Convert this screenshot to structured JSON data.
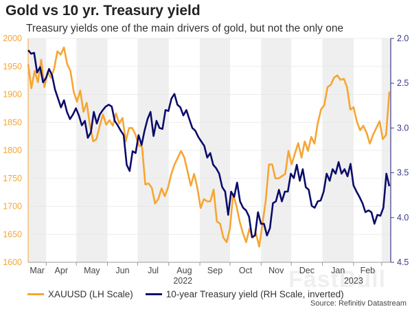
{
  "header": {
    "title": "Gold vs 10 yr. Treasury yield",
    "subtitle": "Treasury yields one of the main drivers of gold, but not the only one"
  },
  "watermark": "FastBull",
  "source": "Source: Refinitiv Datastream",
  "chart_data": {
    "type": "line",
    "title": "Gold vs 10 yr. Treasury yield",
    "x_range": [
      "2022-03-14",
      "2023-03-10"
    ],
    "x_ticks": [
      {
        "label": "Mar",
        "date": "2022-03-01"
      },
      {
        "label": "Apr",
        "date": "2022-04-01"
      },
      {
        "label": "May",
        "date": "2022-05-01"
      },
      {
        "label": "Jun",
        "date": "2022-06-01"
      },
      {
        "label": "Jul",
        "date": "2022-07-01"
      },
      {
        "label": "Aug",
        "date": "2022-08-01"
      },
      {
        "label": "Sep",
        "date": "2022-09-01"
      },
      {
        "label": "Oct",
        "date": "2022-10-01"
      },
      {
        "label": "Nov",
        "date": "2022-11-01"
      },
      {
        "label": "Dec",
        "date": "2022-12-01"
      },
      {
        "label": "Jan",
        "date": "2023-01-01"
      },
      {
        "label": "Feb",
        "date": "2023-02-01"
      },
      {
        "label": "",
        "date": "2023-03-01"
      }
    ],
    "year_labels": [
      {
        "label": "2022",
        "date": "2022-08-15"
      },
      {
        "label": "2023",
        "date": "2023-02-01"
      }
    ],
    "shaded_months": true,
    "grid": true,
    "y_left": {
      "range": [
        1600,
        2000
      ],
      "ticks": [
        1600,
        1650,
        1700,
        1750,
        1800,
        1850,
        1900,
        1950,
        2000
      ]
    },
    "y_right": {
      "range": [
        2.0,
        4.5
      ],
      "inverted": true,
      "ticks": [
        "2.0",
        "2.5",
        "3.0",
        "3.5",
        "4.0",
        "4.5"
      ]
    },
    "legend_position": "bottom",
    "series": [
      {
        "name": "XAUUSD (LH Scale)",
        "axis": "left",
        "color": "#F7A531",
        "values": [
          1954,
          1911,
          1942,
          1922,
          1962,
          1913,
          1940,
          1930,
          1946,
          1977,
          1971,
          1984,
          1954,
          1942,
          1905,
          1887,
          1907,
          1869,
          1885,
          1844,
          1816,
          1820,
          1844,
          1864,
          1846,
          1854,
          1844,
          1866,
          1848,
          1858,
          1816,
          1840,
          1840,
          1828,
          1809,
          1806,
          1739,
          1741,
          1733,
          1705,
          1713,
          1732,
          1718,
          1734,
          1758,
          1775,
          1787,
          1799,
          1787,
          1762,
          1737,
          1758,
          1733,
          1697,
          1713,
          1709,
          1709,
          1730,
          1673,
          1669,
          1644,
          1636,
          1660,
          1722,
          1701,
          1673,
          1652,
          1636,
          1660,
          1644,
          1652,
          1628,
          1669,
          1709,
          1775,
          1775,
          1750,
          1750,
          1754,
          1758,
          1799,
          1775,
          1795,
          1813,
          1787,
          1816,
          1799,
          1824,
          1812,
          1848,
          1873,
          1881,
          1913,
          1917,
          1930,
          1934,
          1926,
          1928,
          1913,
          1873,
          1877,
          1852,
          1836,
          1844,
          1832,
          1812,
          1828,
          1840,
          1852,
          1820,
          1828,
          1905
        ]
      },
      {
        "name": "10-year Treasury yield (RH Scale, inverted)",
        "axis": "right",
        "color": "#0B0B6B",
        "values": [
          2.13,
          2.17,
          2.16,
          2.38,
          2.32,
          2.49,
          2.44,
          2.34,
          2.41,
          2.57,
          2.67,
          2.77,
          2.69,
          2.82,
          2.9,
          2.85,
          2.78,
          2.86,
          2.97,
          2.92,
          3.11,
          3.05,
          2.82,
          2.95,
          2.85,
          2.8,
          2.76,
          2.74,
          2.76,
          2.92,
          2.97,
          3.03,
          3.08,
          3.41,
          3.48,
          3.26,
          3.28,
          3.08,
          3.19,
          3.03,
          2.9,
          2.82,
          3.09,
          2.92,
          3.0,
          3.01,
          2.8,
          2.81,
          2.67,
          2.62,
          2.74,
          2.77,
          2.86,
          2.8,
          2.9,
          3.0,
          3.03,
          3.1,
          3.15,
          3.2,
          3.33,
          3.28,
          3.41,
          3.45,
          3.51,
          3.66,
          3.71,
          3.97,
          3.71,
          3.77,
          3.61,
          3.82,
          3.89,
          3.92,
          3.99,
          4.22,
          4.2,
          3.94,
          4.07,
          4.07,
          4.2,
          4.12,
          3.84,
          3.82,
          3.69,
          3.82,
          3.71,
          3.71,
          3.51,
          3.56,
          3.41,
          3.59,
          3.46,
          3.66,
          3.69,
          3.87,
          3.89,
          3.82,
          3.81,
          3.71,
          3.51,
          3.59,
          3.46,
          3.51,
          3.38,
          3.51,
          3.46,
          3.54,
          3.4,
          3.64,
          3.71,
          3.77,
          3.84,
          3.94,
          3.92,
          3.94,
          4.07,
          3.97,
          3.98,
          3.89,
          3.51,
          3.65
        ]
      }
    ]
  }
}
